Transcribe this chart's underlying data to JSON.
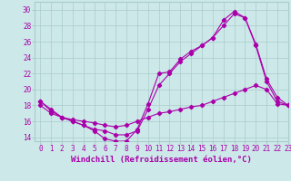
{
  "xlabel": "Windchill (Refroidissement éolien,°C)",
  "bg_color": "#cce8e8",
  "grid_color": "#aacccc",
  "line_color": "#aa00aa",
  "line1_x": [
    0,
    1,
    2,
    3,
    4,
    5,
    6,
    7,
    8,
    9,
    10,
    11,
    12,
    13,
    14,
    15,
    16,
    17,
    18,
    19,
    20,
    21,
    22,
    23
  ],
  "line1_y": [
    18.5,
    17.5,
    16.5,
    16.0,
    15.5,
    14.8,
    13.8,
    13.5,
    13.5,
    15.0,
    18.2,
    22.0,
    22.2,
    23.8,
    24.8,
    25.5,
    26.5,
    28.7,
    29.8,
    29.0,
    25.7,
    21.3,
    19.0,
    18.0
  ],
  "line2_x": [
    0,
    1,
    2,
    3,
    4,
    5,
    6,
    7,
    8,
    9,
    10,
    11,
    12,
    13,
    14,
    15,
    16,
    17,
    18,
    19,
    20,
    21,
    22,
    23
  ],
  "line2_y": [
    18.5,
    17.3,
    16.5,
    16.0,
    15.5,
    15.0,
    14.8,
    14.3,
    14.3,
    14.8,
    17.5,
    20.5,
    22.0,
    23.5,
    24.5,
    25.5,
    26.5,
    28.0,
    29.5,
    29.0,
    25.5,
    21.0,
    18.5,
    18.0
  ],
  "line3_x": [
    0,
    1,
    2,
    3,
    4,
    5,
    6,
    7,
    8,
    9,
    10,
    11,
    12,
    13,
    14,
    15,
    16,
    17,
    18,
    19,
    20,
    21,
    22,
    23
  ],
  "line3_y": [
    18.0,
    17.0,
    16.5,
    16.2,
    16.0,
    15.8,
    15.5,
    15.3,
    15.5,
    16.0,
    16.5,
    17.0,
    17.2,
    17.5,
    17.8,
    18.0,
    18.5,
    19.0,
    19.5,
    20.0,
    20.5,
    20.0,
    18.2,
    18.0
  ],
  "ylim": [
    13.5,
    31
  ],
  "xlim": [
    -0.5,
    23
  ],
  "yticks": [
    14,
    16,
    18,
    20,
    22,
    24,
    26,
    28,
    30
  ],
  "xticks": [
    0,
    1,
    2,
    3,
    4,
    5,
    6,
    7,
    8,
    9,
    10,
    11,
    12,
    13,
    14,
    15,
    16,
    17,
    18,
    19,
    20,
    21,
    22,
    23
  ],
  "tick_fontsize": 5.5,
  "xlabel_fontsize": 6.5,
  "marker": "D",
  "marker_size": 2.2,
  "linewidth": 0.8
}
